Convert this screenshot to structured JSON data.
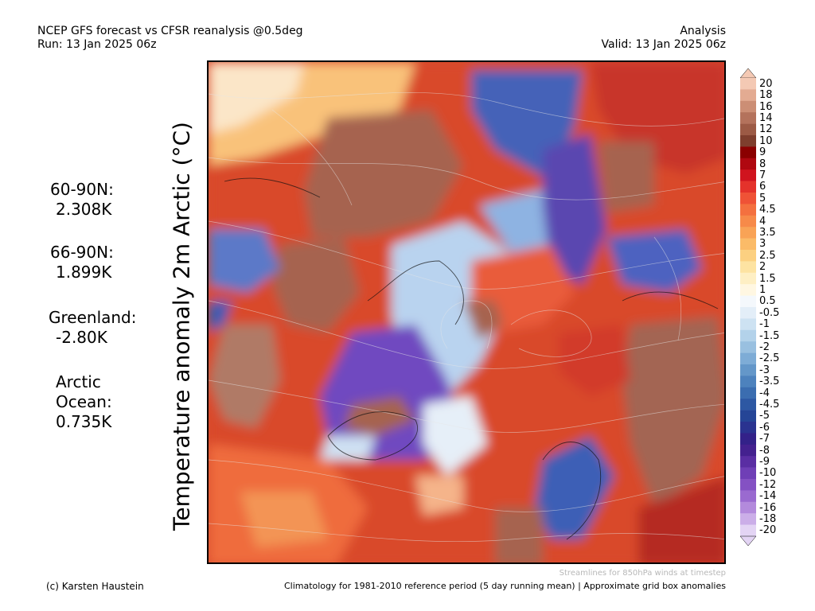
{
  "header": {
    "title_left": "NCEP GFS forecast vs CFSR reanalysis @0.5deg",
    "run": "Run: 13 Jan 2025 06z",
    "title_right": "Analysis",
    "valid": "Valid: 13 Jan 2025 06z"
  },
  "map": {
    "variable_label": "Temperature anomaly 2m Arctic (°C)",
    "stats": [
      {
        "label": "60-90N:",
        "value": "2.308K"
      },
      {
        "label": "66-90N:",
        "value": "1.899K"
      },
      {
        "label": "Greenland:",
        "value": "-2.80K"
      },
      {
        "label_line1": "Arctic",
        "label_line2": "Ocean:",
        "value": "0.735K"
      }
    ]
  },
  "colorbar": {
    "labels": [
      "20",
      "18",
      "16",
      "14",
      "12",
      "10",
      "9",
      "8",
      "7",
      "6",
      "5",
      "4.5",
      "4",
      "3.5",
      "3",
      "2.5",
      "2",
      "1.5",
      "1",
      "0.5",
      "-0.5",
      "-1",
      "-1.5",
      "-2",
      "-2.5",
      "-3",
      "-3.5",
      "-4",
      "-4.5",
      "-5",
      "-6",
      "-7",
      "-8",
      "-9",
      "-10",
      "-12",
      "-14",
      "-16",
      "-18",
      "-20"
    ],
    "colors": [
      "#f4c9b4",
      "#e3ab92",
      "#cc8e75",
      "#b4725c",
      "#9c5a45",
      "#7e3e2d",
      "#8b0000",
      "#b00810",
      "#d0141e",
      "#e4322b",
      "#ef5236",
      "#f4703f",
      "#f78a49",
      "#f9a356",
      "#fbbb68",
      "#fcd081",
      "#fde3a2",
      "#feefc4",
      "#fff7e2",
      "#f4f8fc",
      "#e3eef8",
      "#cde2f2",
      "#b3d2ea",
      "#99c0e0",
      "#7eacd6",
      "#6497c9",
      "#4d82bd",
      "#3b6db0",
      "#2d58a3",
      "#254596",
      "#2a3390",
      "#332189",
      "#44218f",
      "#5a2ea3",
      "#6f3fb6",
      "#8451c3",
      "#9a6ad0",
      "#b38adc",
      "#cbaee8",
      "#e3d4f4"
    ]
  },
  "footer": {
    "note": "Streamlines for 850hPa winds at timestep",
    "credit": "(c) Karsten Haustein",
    "climatology": "Climatology for 1981-2010 reference period (5 day running mean) | Approximate grid box anomalies"
  }
}
